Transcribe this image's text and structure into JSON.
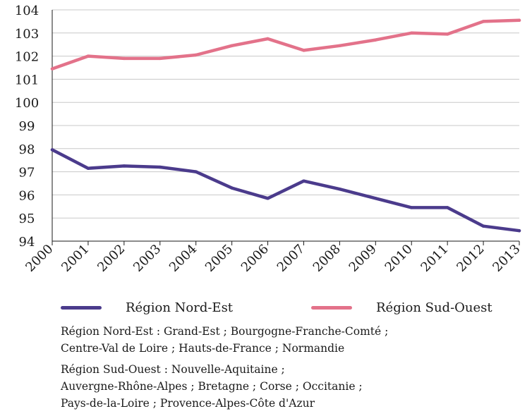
{
  "chart_data": {
    "type": "line",
    "x": [
      "2000",
      "2001",
      "2002",
      "2003",
      "2004",
      "2005",
      "2006",
      "2007",
      "2008",
      "2009",
      "2010",
      "2011",
      "2012",
      "2013"
    ],
    "yticks": [
      "94",
      "95",
      "96",
      "97",
      "98",
      "99",
      "100",
      "101",
      "102",
      "103",
      "104"
    ],
    "ylim": [
      94,
      104
    ],
    "grid": "horizontal",
    "legend": "bottom",
    "series": [
      {
        "name": "Région Nord-Est",
        "color": "#4b3b8c",
        "values": [
          97.95,
          97.15,
          97.25,
          97.2,
          97.0,
          96.3,
          95.85,
          96.6,
          96.25,
          95.85,
          95.45,
          95.45,
          94.65,
          94.45
        ]
      },
      {
        "name": "Région Sud-Ouest",
        "color": "#e3728a",
        "values": [
          101.45,
          102.0,
          101.9,
          101.9,
          102.05,
          102.45,
          102.75,
          102.25,
          102.45,
          102.7,
          103.0,
          102.95,
          103.5,
          103.55
        ]
      }
    ],
    "notes": [
      [
        "Région Nord-Est : Grand-Est ; Bourgogne-Franche-Comté ;",
        "Centre-Val de Loire ; Hauts-de-France ; Normandie"
      ],
      [
        "Région Sud-Ouest : Nouvelle-Aquitaine ;",
        "Auvergne-Rhône-Alpes ; Bretagne ; Corse ; Occitanie ;",
        "Pays-de-la-Loire ; Provence-Alpes-Côte d'Azur"
      ]
    ]
  }
}
